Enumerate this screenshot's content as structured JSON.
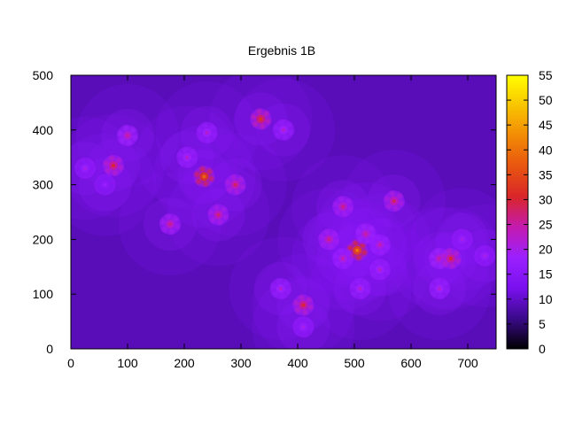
{
  "chart_data": {
    "type": "heatmap",
    "title": "Ergebnis 1B",
    "xlabel": "",
    "ylabel": "",
    "xlim": [
      0,
      750
    ],
    "ylim": [
      0,
      500
    ],
    "x_ticks": [
      "0",
      "100",
      "200",
      "300",
      "400",
      "500",
      "600",
      "700"
    ],
    "y_ticks": [
      "0",
      "100",
      "200",
      "300",
      "400",
      "500"
    ],
    "colorbar": {
      "range": [
        0,
        55
      ],
      "ticks": [
        "0",
        "5",
        "10",
        "15",
        "20",
        "25",
        "30",
        "35",
        "40",
        "45",
        "50",
        "55"
      ],
      "palette": [
        "#000000",
        "#3a0a8a",
        "#7a10ee",
        "#9b20ff",
        "#c41ab0",
        "#d9262a",
        "#e85510",
        "#f28a05",
        "#f9c400",
        "#ffff00"
      ]
    },
    "background_level": 9,
    "clusters": [
      {
        "x": 25,
        "y": 330,
        "peak": 20
      },
      {
        "x": 75,
        "y": 335,
        "peak": 30
      },
      {
        "x": 100,
        "y": 390,
        "peak": 25
      },
      {
        "x": 60,
        "y": 300,
        "peak": 18
      },
      {
        "x": 205,
        "y": 350,
        "peak": 22
      },
      {
        "x": 235,
        "y": 315,
        "peak": 38
      },
      {
        "x": 240,
        "y": 395,
        "peak": 22
      },
      {
        "x": 290,
        "y": 300,
        "peak": 28
      },
      {
        "x": 260,
        "y": 245,
        "peak": 27
      },
      {
        "x": 175,
        "y": 228,
        "peak": 26
      },
      {
        "x": 335,
        "y": 420,
        "peak": 32
      },
      {
        "x": 375,
        "y": 400,
        "peak": 22
      },
      {
        "x": 370,
        "y": 110,
        "peak": 22
      },
      {
        "x": 410,
        "y": 80,
        "peak": 30
      },
      {
        "x": 410,
        "y": 40,
        "peak": 20
      },
      {
        "x": 480,
        "y": 260,
        "peak": 26
      },
      {
        "x": 455,
        "y": 200,
        "peak": 26
      },
      {
        "x": 505,
        "y": 180,
        "peak": 40
      },
      {
        "x": 520,
        "y": 210,
        "peak": 25
      },
      {
        "x": 480,
        "y": 165,
        "peak": 24
      },
      {
        "x": 545,
        "y": 190,
        "peak": 24
      },
      {
        "x": 510,
        "y": 110,
        "peak": 22
      },
      {
        "x": 545,
        "y": 145,
        "peak": 22
      },
      {
        "x": 570,
        "y": 270,
        "peak": 28
      },
      {
        "x": 650,
        "y": 165,
        "peak": 25
      },
      {
        "x": 670,
        "y": 165,
        "peak": 30
      },
      {
        "x": 690,
        "y": 200,
        "peak": 20
      },
      {
        "x": 650,
        "y": 110,
        "peak": 22
      },
      {
        "x": 730,
        "y": 170,
        "peak": 20
      }
    ]
  }
}
